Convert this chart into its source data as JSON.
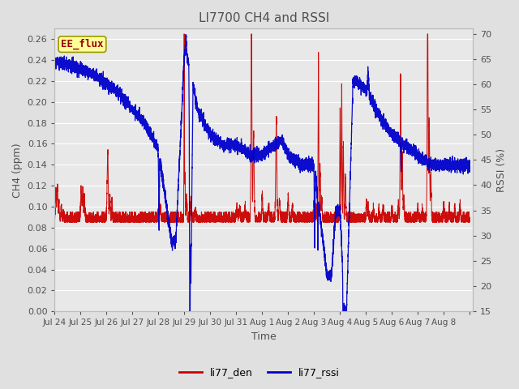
{
  "title": "LI7700 CH4 and RSSI",
  "xlabel": "Time",
  "ylabel_left": "CH4 (ppm)",
  "ylabel_right": "RSSI (%)",
  "legend_label_red": "li77_den",
  "legend_label_blue": "li77_rssi",
  "annotation_text": "EE_flux",
  "left_ylim": [
    0.0,
    0.27
  ],
  "right_ylim": [
    15,
    71
  ],
  "left_yticks": [
    0.0,
    0.02,
    0.04,
    0.06,
    0.08,
    0.1,
    0.12,
    0.14,
    0.16,
    0.18,
    0.2,
    0.22,
    0.24,
    0.26
  ],
  "right_yticks": [
    15,
    20,
    25,
    30,
    35,
    40,
    45,
    50,
    55,
    60,
    65,
    70
  ],
  "fig_bg_color": "#e0e0e0",
  "plot_bg_color": "#e8e8e8",
  "line_color_red": "#cc0000",
  "line_color_blue": "#0000cc",
  "grid_color": "#ffffff",
  "title_color": "#505050",
  "label_color": "#505050",
  "tick_color": "#505050",
  "annotation_bg": "#ffff99",
  "annotation_border": "#999900",
  "annotation_text_color": "#990000",
  "xtick_positions": [
    0,
    24,
    48,
    72,
    96,
    120,
    144,
    168,
    192,
    216,
    240,
    264,
    288,
    312,
    336,
    360,
    384
  ],
  "xtick_labels": [
    "Jul 24",
    "Jul 25",
    "Jul 26",
    "Jul 27",
    "Jul 28",
    "Jul 29",
    "Jul 30",
    "Jul 31",
    "Aug 1",
    "Aug 2",
    "Aug 3",
    "Aug 4",
    "Aug 5",
    "Aug 6",
    "Aug 7",
    "Aug 8",
    ""
  ],
  "xlim": [
    0,
    387
  ],
  "figsize": [
    6.4,
    4.8
  ],
  "dpi": 100
}
